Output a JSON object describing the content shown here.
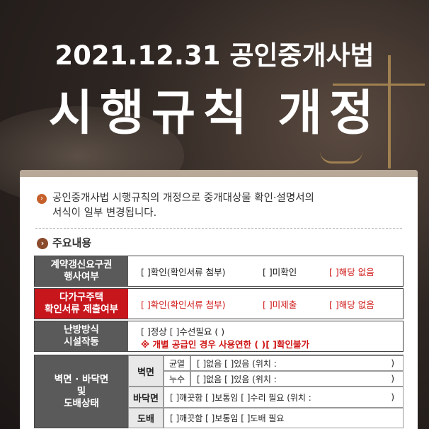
{
  "header": {
    "title_line1": "2021.12.31 공인중개사법",
    "title_line2": "시행규칙 개정"
  },
  "intro": {
    "line1": "공인중개사법 시행규칙의 개정으로 중개대상물 확인·설명서의",
    "line2": "서식이 일부 변경됩니다."
  },
  "section_title": "주요내용",
  "rows": [
    {
      "label_l1": "계약갱신요구권",
      "label_l2": "행사여부",
      "opt1": "[  ]확인(확인서류 첨부)",
      "opt2": "[  ]미확인",
      "opt3": "[  ]해당 없음"
    },
    {
      "label_l1": "다가구주택",
      "label_l2": "확인서류 제출여부",
      "opt1": "[  ]확인(확인서류 첨부)",
      "opt2": "[  ]미제출",
      "opt3": "[  ]해당 없음"
    },
    {
      "label_l1": "난방방식",
      "label_l2": "시설작동",
      "opt1": "[  ]정상  [  ]수선필요 (          )",
      "note": "※ 개별 공급인 경우 사용연한 (    )[    ]확인불가"
    }
  ],
  "table": {
    "main_label_l1": "벽면 · 바닥면",
    "main_label_l2": "및",
    "main_label_l3": "도배상태",
    "wall_label": "벽면",
    "crack_label": "균열",
    "crack_opts": "[  ]없음  [  ]있음 (위치 :",
    "crack_close": ")",
    "leak_label": "누수",
    "leak_opts": "[  ]없음  [  ]있음 (위치 :",
    "leak_close": ")",
    "floor_label": "바닥면",
    "floor_opts": "[  ]깨끗함  [  ]보통임  [  ]수리 필요 (위치 :",
    "floor_close": ")",
    "paper_label": "도배",
    "paper_opts": "[  ]깨끗함  [  ]보통임  [  ]도배 필요"
  },
  "colors": {
    "label_gray": "#5a5a5a",
    "label_red": "#c8161d",
    "accent_red": "#d01818",
    "bullet": "#c6602a"
  }
}
